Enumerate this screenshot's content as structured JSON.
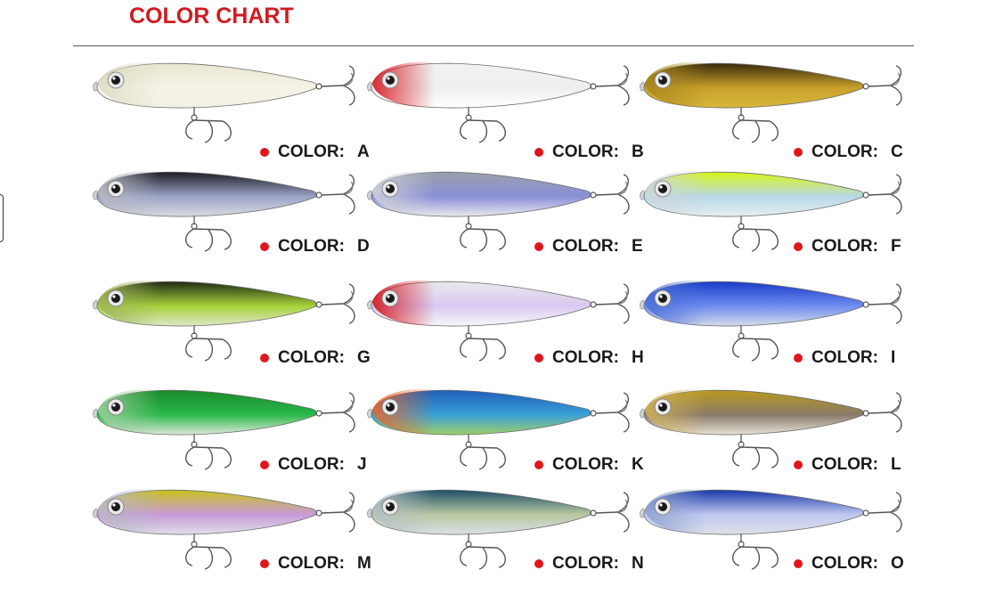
{
  "title": "COLOR CHART",
  "caption_label": "COLOR:",
  "colors": {
    "title_red": "#d01c21",
    "dot_red": "#e0161d"
  },
  "lures": [
    {
      "code": "A",
      "back": "#e9e6cf",
      "belly": "#f3f1e4",
      "head": "#dedbc2",
      "accent": "#f5f3e8"
    },
    {
      "code": "B",
      "back": "#f2f2f2",
      "belly": "#ffffff",
      "head": "#d8141c",
      "accent": "#eeeeee"
    },
    {
      "code": "C",
      "back": "#3a2a0c",
      "belly": "#d9b83a",
      "head": "#a8871d",
      "accent": "#c8a02c"
    },
    {
      "code": "D",
      "back": "#1c1c22",
      "belly": "#d9dbe0",
      "head": "#b7b9c2",
      "accent": "#9aa3c7"
    },
    {
      "code": "E",
      "back": "#9aa0aa",
      "belly": "#e8e9ec",
      "head": "#cfd2d8",
      "accent": "#8a8fd8"
    },
    {
      "code": "F",
      "back": "#d7f515",
      "belly": "#e6eef0",
      "head": "#cdd6da",
      "accent": "#b8d8e8"
    },
    {
      "code": "G",
      "back": "#1f2a14",
      "belly": "#dfe6c8",
      "head": "#9fb45a",
      "accent": "#a7d23a"
    },
    {
      "code": "H",
      "back": "#e9e9ec",
      "belly": "#f7f7f9",
      "head": "#d3121a",
      "accent": "#d9c8f0"
    },
    {
      "code": "I",
      "back": "#1a3cc8",
      "belly": "#d5dce8",
      "head": "#4a6fd8",
      "accent": "#6f8cf0"
    },
    {
      "code": "J",
      "back": "#1a8a2a",
      "belly": "#dfe8dc",
      "head": "#9fcfa0",
      "accent": "#2bb84a"
    },
    {
      "code": "K",
      "back": "#1e5fb8",
      "belly": "#9ccf6a",
      "head": "#e8662a",
      "accent": "#3aa0d8"
    },
    {
      "code": "L",
      "back": "#b89a1c",
      "belly": "#e6e1d6",
      "head": "#cfb25a",
      "accent": "#8a7a6a"
    },
    {
      "code": "M",
      "back": "#c8c21c",
      "belly": "#dedfe8",
      "head": "#b9b9c4",
      "accent": "#c79ad8"
    },
    {
      "code": "N",
      "back": "#1d4f66",
      "belly": "#dadfe6",
      "head": "#b5c0c8",
      "accent": "#b8c8a0"
    },
    {
      "code": "O",
      "back": "#1838a8",
      "belly": "#dde0e8",
      "head": "#8fa0d0",
      "accent": "#c0c8f0"
    }
  ]
}
